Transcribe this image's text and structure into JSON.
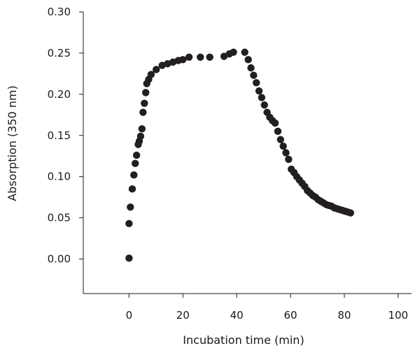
{
  "chart_data": {
    "type": "scatter",
    "xlabel": "Incubation time (min)",
    "ylabel": "Absorption (350 nm)",
    "xlim": [
      -17,
      105
    ],
    "ylim": [
      -0.042,
      0.3
    ],
    "x_ticks": [
      0,
      20,
      40,
      60,
      80,
      100
    ],
    "y_ticks": [
      0.0,
      0.05,
      0.1,
      0.15,
      0.2,
      0.25,
      0.3
    ],
    "x_tick_labels": [
      "0",
      "20",
      "40",
      "60",
      "80",
      "100"
    ],
    "y_tick_labels": [
      "0.00",
      "0.05",
      "0.10",
      "0.15",
      "0.20",
      "0.25",
      "0.30"
    ],
    "grid": false,
    "marker_color": "#231f20",
    "points": [
      [
        0.0,
        0.001
      ],
      [
        0.0,
        0.043
      ],
      [
        0.5,
        0.063
      ],
      [
        1.2,
        0.085
      ],
      [
        1.8,
        0.102
      ],
      [
        2.3,
        0.116
      ],
      [
        2.8,
        0.126
      ],
      [
        3.4,
        0.139
      ],
      [
        3.8,
        0.143
      ],
      [
        4.3,
        0.149
      ],
      [
        4.8,
        0.158
      ],
      [
        5.2,
        0.178
      ],
      [
        5.7,
        0.189
      ],
      [
        6.2,
        0.202
      ],
      [
        6.6,
        0.213
      ],
      [
        7.3,
        0.218
      ],
      [
        8.2,
        0.224
      ],
      [
        10.1,
        0.23
      ],
      [
        12.3,
        0.235
      ],
      [
        14.3,
        0.237
      ],
      [
        16.3,
        0.239
      ],
      [
        18.3,
        0.241
      ],
      [
        20.0,
        0.242
      ],
      [
        22.3,
        0.245
      ],
      [
        26.5,
        0.245
      ],
      [
        30.0,
        0.245
      ],
      [
        35.3,
        0.246
      ],
      [
        37.3,
        0.249
      ],
      [
        38.8,
        0.251
      ],
      [
        43.0,
        0.251
      ],
      [
        44.3,
        0.242
      ],
      [
        45.3,
        0.232
      ],
      [
        46.3,
        0.223
      ],
      [
        47.3,
        0.214
      ],
      [
        48.3,
        0.204
      ],
      [
        49.3,
        0.196
      ],
      [
        50.3,
        0.187
      ],
      [
        51.3,
        0.178
      ],
      [
        52.3,
        0.172
      ],
      [
        53.3,
        0.168
      ],
      [
        54.3,
        0.165
      ],
      [
        55.3,
        0.155
      ],
      [
        56.3,
        0.145
      ],
      [
        57.3,
        0.137
      ],
      [
        58.3,
        0.129
      ],
      [
        59.3,
        0.121
      ],
      [
        60.3,
        0.109
      ],
      [
        61.3,
        0.105
      ],
      [
        62.3,
        0.1
      ],
      [
        63.3,
        0.096
      ],
      [
        64.3,
        0.092
      ],
      [
        65.3,
        0.088
      ],
      [
        66.3,
        0.083
      ],
      [
        67.3,
        0.08
      ],
      [
        68.3,
        0.077
      ],
      [
        69.3,
        0.075
      ],
      [
        70.3,
        0.072
      ],
      [
        71.3,
        0.07
      ],
      [
        72.3,
        0.068
      ],
      [
        73.3,
        0.066
      ],
      [
        74.3,
        0.065
      ],
      [
        75.3,
        0.064
      ],
      [
        76.3,
        0.062
      ],
      [
        77.3,
        0.061
      ],
      [
        78.3,
        0.06
      ],
      [
        79.3,
        0.059
      ],
      [
        80.3,
        0.058
      ],
      [
        81.3,
        0.057
      ],
      [
        82.3,
        0.056
      ]
    ]
  }
}
